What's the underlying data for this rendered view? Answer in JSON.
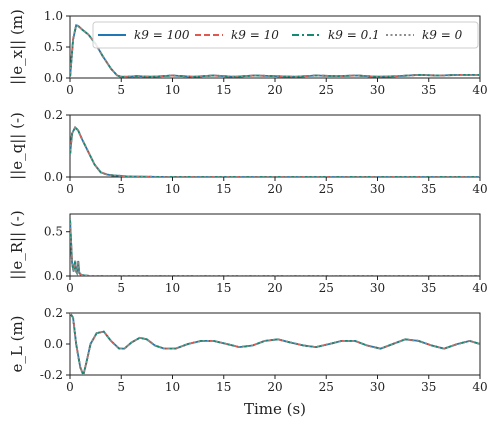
{
  "chart_data": {
    "type": "line",
    "xlabel": "Time (s)",
    "xlim": [
      0,
      40
    ],
    "xticks": [
      "0",
      "5",
      "10",
      "15",
      "20",
      "25",
      "30",
      "35",
      "40"
    ],
    "legend_placement": "top",
    "series_styles": [
      {
        "name": "k9 = 100",
        "label": "k9 = 100",
        "color": "#1f77b4",
        "dash": "solid"
      },
      {
        "name": "k9 = 10",
        "label": "k9 = 10",
        "color": "#e0584f",
        "dash": "dashed"
      },
      {
        "name": "k9 = 0.1",
        "label": "k9 = 0.1",
        "color": "#138a72",
        "dash": "dashdot"
      },
      {
        "name": "k9 = 0",
        "label": "k9 = 0",
        "color": "#8c8c8c",
        "dash": "dotted"
      }
    ],
    "panels": [
      {
        "ylabel": "||e_x|| (m)",
        "ylim": [
          0,
          1
        ],
        "yticks": [
          "0.0",
          "0.5",
          "1.0"
        ],
        "ytick_values": [
          0,
          0.5,
          1.0
        ],
        "x": [
          0,
          0.3,
          0.6,
          0.8,
          1.2,
          1.8,
          2.5,
          3.2,
          4.0,
          4.6,
          5.0,
          5.5,
          6.5,
          8,
          10,
          12,
          14,
          16,
          18,
          20,
          22,
          24,
          26,
          28,
          30,
          32,
          34,
          36,
          38,
          40
        ],
        "y": [
          0,
          0.62,
          0.85,
          0.84,
          0.78,
          0.7,
          0.55,
          0.35,
          0.15,
          0.04,
          0.02,
          0.02,
          0.03,
          0.02,
          0.04,
          0.02,
          0.04,
          0.02,
          0.04,
          0.03,
          0.02,
          0.04,
          0.03,
          0.04,
          0.02,
          0.03,
          0.05,
          0.04,
          0.05,
          0.05
        ]
      },
      {
        "ylabel": "||e_q|| (-)",
        "ylim": [
          0,
          0.2
        ],
        "yticks": [
          "0.0",
          "0.2"
        ],
        "ytick_values": [
          0,
          0.2
        ],
        "x": [
          0,
          0.2,
          0.5,
          0.8,
          1.2,
          1.8,
          2.4,
          3.0,
          3.6,
          4.2,
          4.8,
          5.5,
          6.5,
          10,
          20,
          30,
          40
        ],
        "y": [
          0.07,
          0.14,
          0.16,
          0.15,
          0.12,
          0.08,
          0.04,
          0.015,
          0.008,
          0.005,
          0.004,
          0.002,
          0.001,
          0.0,
          0.0,
          0.0,
          0.0
        ]
      },
      {
        "ylabel": "||e_R|| (-)",
        "ylim": [
          0,
          0.7
        ],
        "yticks": [
          "0.0",
          "0.5"
        ],
        "ytick_values": [
          0,
          0.5
        ],
        "x": [
          0,
          0.1,
          0.2,
          0.35,
          0.5,
          0.6,
          0.7,
          0.8,
          0.9,
          1.0,
          1.2,
          1.5,
          2.0,
          5,
          10,
          20,
          30,
          40
        ],
        "y": [
          0.65,
          0.4,
          0.15,
          0.05,
          0.17,
          0.05,
          0.03,
          0.17,
          0.04,
          0.02,
          0.01,
          0.005,
          0.0,
          0.0,
          0.0,
          0.0,
          0.0,
          0.0
        ]
      },
      {
        "ylabel": "e_L (m)",
        "ylim": [
          -0.2,
          0.2
        ],
        "yticks": [
          "-0.2",
          "0.0",
          "0.2"
        ],
        "ytick_values": [
          -0.2,
          0,
          0.2
        ],
        "x": [
          0,
          0.3,
          0.6,
          1.0,
          1.3,
          1.6,
          2.0,
          2.6,
          3.3,
          4.0,
          4.8,
          5.3,
          6.0,
          6.8,
          7.5,
          8.3,
          9.2,
          10.3,
          11.5,
          12.8,
          14.0,
          15.3,
          16.5,
          17.8,
          19.0,
          20.3,
          21.5,
          22.8,
          24.0,
          25.3,
          26.5,
          27.8,
          29.0,
          30.3,
          31.5,
          32.7,
          34.0,
          35.3,
          36.5,
          37.8,
          39.0,
          40.0
        ],
        "y": [
          0.2,
          0.17,
          0.0,
          -0.15,
          -0.2,
          -0.12,
          0.0,
          0.07,
          0.08,
          0.02,
          -0.03,
          -0.03,
          0.01,
          0.04,
          0.03,
          -0.01,
          -0.03,
          -0.03,
          0.0,
          0.02,
          0.02,
          0.0,
          -0.02,
          -0.01,
          0.02,
          0.03,
          0.01,
          -0.01,
          -0.02,
          0.0,
          0.02,
          0.02,
          -0.01,
          -0.03,
          0.0,
          0.03,
          0.02,
          -0.01,
          -0.03,
          0.0,
          0.02,
          0.0
        ]
      }
    ]
  }
}
